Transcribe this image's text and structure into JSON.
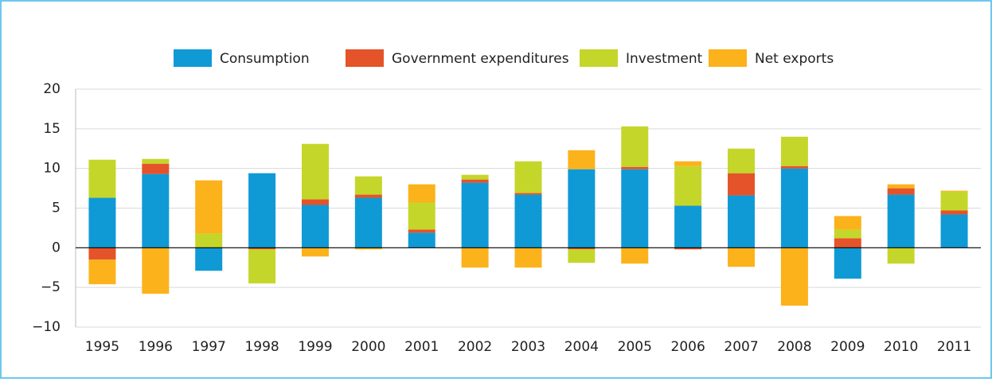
{
  "chart_data": {
    "type": "stacked_bar",
    "categories": [
      "1995",
      "1996",
      "1997",
      "1998",
      "1999",
      "2000",
      "2001",
      "2002",
      "2003",
      "2004",
      "2005",
      "2006",
      "2007",
      "2008",
      "2009",
      "2010",
      "2011"
    ],
    "series": [
      {
        "name": "Consumption",
        "color": "#0f9ad6",
        "values": [
          6.3,
          9.3,
          -2.9,
          9.4,
          5.4,
          6.3,
          1.9,
          8.2,
          6.7,
          9.9,
          9.9,
          5.3,
          6.6,
          10.0,
          -3.9,
          6.7,
          4.2
        ]
      },
      {
        "name": "Government expenditures",
        "color": "#e5532a",
        "values": [
          -1.5,
          1.3,
          0,
          -0.2,
          0.7,
          0.4,
          0.4,
          0.4,
          0.2,
          -0.2,
          0.3,
          -0.2,
          2.8,
          0.3,
          1.2,
          0.8,
          0.5
        ]
      },
      {
        "name": "Investment",
        "color": "#c5d62a",
        "values": [
          4.8,
          0.6,
          1.8,
          -4.3,
          7.0,
          2.3,
          3.4,
          0.6,
          4.0,
          -1.7,
          5.1,
          5.0,
          3.1,
          3.7,
          1.1,
          -2.0,
          2.4
        ]
      },
      {
        "name": "Net exports",
        "color": "#fbb21b",
        "values": [
          -3.1,
          -5.8,
          6.7,
          0,
          -1.1,
          -0.2,
          2.3,
          -2.5,
          -2.5,
          2.4,
          -2.0,
          0.6,
          -2.4,
          -7.3,
          1.7,
          0.5,
          0.1
        ]
      }
    ],
    "ylim": [
      -10,
      20
    ],
    "yticks": [
      {
        "value": -10,
        "label": "−10"
      },
      {
        "value": -5,
        "label": "−5"
      },
      0,
      5,
      10,
      15,
      20
    ],
    "grid": true
  }
}
